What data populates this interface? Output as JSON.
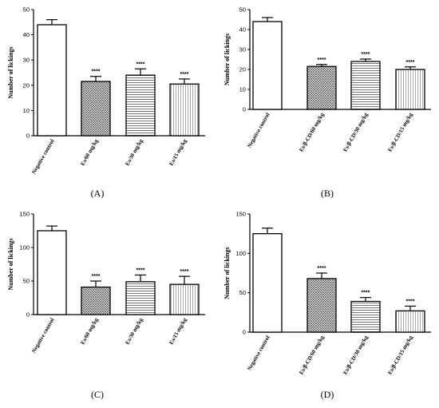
{
  "chart_data": [
    {
      "type": "bar",
      "panel_label": "(A)",
      "ylabel": "Number of lickings",
      "categories": [
        "Negative control",
        "Es/60 mg/kg",
        "Es/30 mg/kg",
        "Es/15 mg/kg"
      ],
      "values": [
        44,
        21.5,
        24,
        20.5
      ],
      "errors": [
        2,
        2,
        2.5,
        2
      ],
      "significance": [
        "",
        "****",
        "****",
        "****"
      ],
      "patterns": [
        "white",
        "dots",
        "hlines",
        "vlines"
      ],
      "ylim": [
        0,
        50
      ],
      "yticks": [
        0,
        10,
        20,
        30,
        40,
        50
      ]
    },
    {
      "type": "bar",
      "panel_label": "(B)",
      "ylabel": "Number of lickings",
      "categories": [
        "Negative control",
        "Es/β-CD/60 mg/kg",
        "Es/β-CD/30 mg/kg",
        "Es/β-CD/15 mg/kg"
      ],
      "values": [
        44,
        21.5,
        24,
        20
      ],
      "errors": [
        2,
        1,
        1.2,
        1.3
      ],
      "significance": [
        "",
        "****",
        "****",
        "****"
      ],
      "patterns": [
        "white",
        "dots",
        "hlines",
        "vlines"
      ],
      "ylim": [
        0,
        50
      ],
      "yticks": [
        0,
        10,
        20,
        30,
        40,
        50
      ]
    },
    {
      "type": "bar",
      "panel_label": "(C)",
      "ylabel": "Number of lickings",
      "categories": [
        "Negative control",
        "Es/60 mg/kg",
        "Es/30 mg/kg",
        "Es/15 mg/kg"
      ],
      "values": [
        125,
        41,
        49,
        45
      ],
      "errors": [
        7,
        9,
        10,
        12
      ],
      "significance": [
        "",
        "****",
        "****",
        "****"
      ],
      "patterns": [
        "white",
        "dots",
        "hlines",
        "vlines"
      ],
      "ylim": [
        0,
        150
      ],
      "yticks": [
        0,
        50,
        100,
        150
      ]
    },
    {
      "type": "bar",
      "panel_label": "(D)",
      "ylabel": "Number of lickings",
      "categories": [
        "Negative control",
        "Es/β-CD/60 mg/kg",
        "Es/β-CD/30 mg/kg",
        "Es/β-CD/15 mg/kg"
      ],
      "values": [
        125,
        68,
        39,
        27
      ],
      "errors": [
        7,
        7,
        5,
        6
      ],
      "significance": [
        "",
        "****",
        "****",
        "****"
      ],
      "patterns": [
        "white",
        "dots",
        "hlines",
        "vlines"
      ],
      "ylim": [
        0,
        150
      ],
      "yticks": [
        0,
        50,
        100,
        150
      ]
    }
  ]
}
